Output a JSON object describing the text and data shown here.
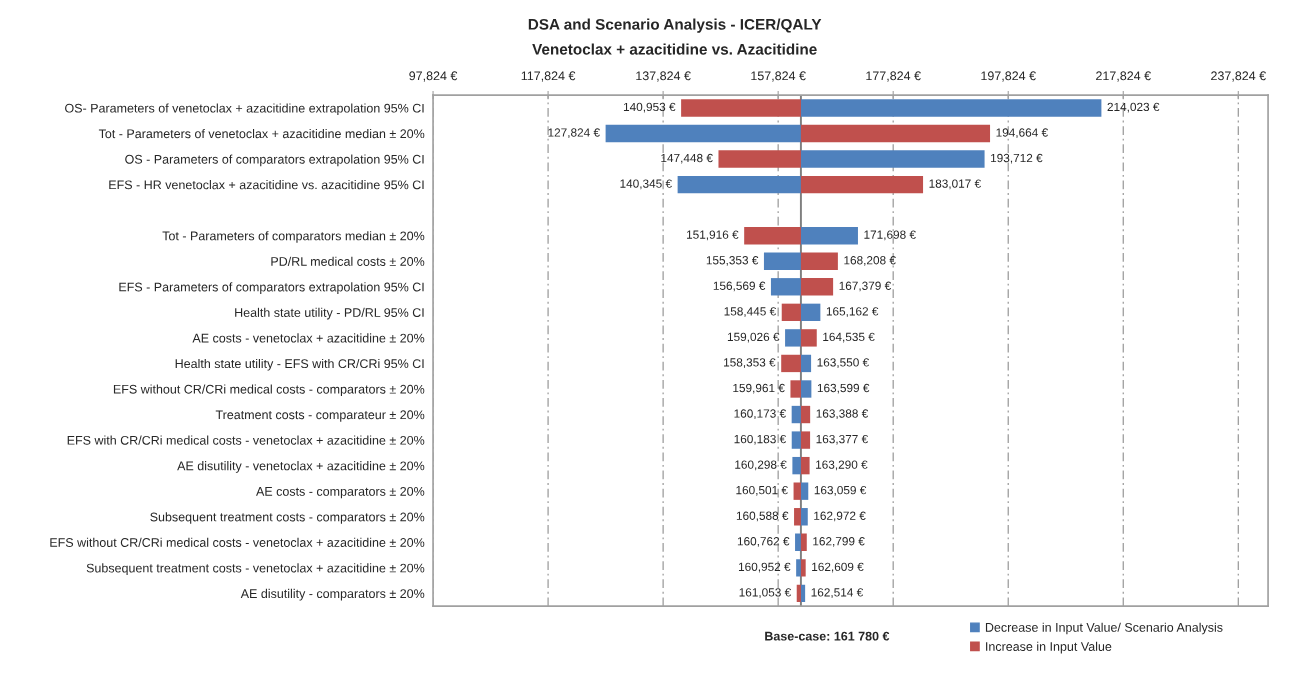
{
  "chart_data": {
    "type": "bar",
    "orientation": "horizontal",
    "title": "DSA and Scenario Analysis - ICER/QALY",
    "subtitle": "Venetoclax + azacitidine vs. Azacitidine",
    "categories": [
      "OS- Parameters of venetoclax + azacitidine extrapolation 95% CI",
      "Tot - Parameters of venetoclax + azacitidine median ± 20%",
      "OS - Parameters of comparators extrapolation 95% CI",
      "EFS - HR venetoclax + azacitidine vs. azacitidine 95% CI",
      null,
      "Tot - Parameters of comparators median ± 20%",
      "PD/RL medical costs ± 20%",
      "EFS - Parameters of comparators extrapolation 95% CI",
      "Health state utility - PD/RL 95% CI",
      "AE costs - venetoclax + azacitidine ± 20%",
      "Health state utility - EFS with CR/CRi 95% CI",
      "EFS without CR/CRi medical costs - comparators ± 20%",
      "Treatment costs - comparateur ± 20%",
      "EFS with CR/CRi medical costs - venetoclax + azacitidine ± 20%",
      "AE disutility - venetoclax + azacitidine ± 20%",
      "AE costs - comparators ± 20%",
      "Subsequent treatment costs - comparators ± 20%",
      "EFS without CR/CRi medical costs - venetoclax + azacitidine ± 20%",
      "Subsequent treatment costs - venetoclax + azacitidine ± 20%",
      "AE disutility - comparators ± 20%"
    ],
    "xlim": [
      97824,
      243000
    ],
    "xticks": [
      {
        "value": 97824,
        "label": "97,824 €"
      },
      {
        "value": 117824,
        "label": "117,824 €"
      },
      {
        "value": 137824,
        "label": "137,824 €"
      },
      {
        "value": 157824,
        "label": "157,824 €"
      },
      {
        "value": 177824,
        "label": "177,824 €"
      },
      {
        "value": 197824,
        "label": "197,824 €"
      },
      {
        "value": 217824,
        "label": "217,824 €"
      },
      {
        "value": 237824,
        "label": "237,824 €"
      }
    ],
    "grid": "x",
    "legend": "bottom right",
    "ref_lines": [
      {
        "axis": "x",
        "value": 161780,
        "color": "#7f7f7f"
      }
    ],
    "annotations": [
      "Base-case: 161 780 €"
    ],
    "series": [
      {
        "name": "Decrease in Input Value/ Scenario Analysis",
        "color": "#4f81bd",
        "base": [
          161780,
          161780,
          161780,
          161780,
          null,
          161780,
          161780,
          161780,
          161780,
          161780,
          161780,
          161780,
          161780,
          161780,
          161780,
          161780,
          161780,
          161780,
          161780,
          161780
        ],
        "values": [
          52243,
          -33956,
          31932,
          -21435,
          null,
          9918,
          -6427,
          -5211,
          3382,
          -2754,
          1770,
          1819,
          -1607,
          -1597,
          -1482,
          1279,
          1192,
          -1018,
          -828,
          734
        ],
        "value_labels": [
          "214,023 €",
          "127,824 €",
          "193,712 €",
          "140,345 €",
          null,
          "171,698 €",
          "155,353 €",
          "156,569 €",
          "165,162 €",
          "159,026 €",
          "163,550 €",
          "163,599 €",
          "160,173 €",
          "160,183 €",
          "160,298 €",
          "163,059 €",
          "162,972 €",
          "160,762 €",
          "160,952 €",
          "162,514 €"
        ]
      },
      {
        "name": "Increase in Input Value",
        "color": "#c0504d",
        "base": [
          161780,
          161780,
          161780,
          161780,
          null,
          161780,
          161780,
          161780,
          161780,
          161780,
          161780,
          161780,
          161780,
          161780,
          161780,
          161780,
          161780,
          161780,
          161780,
          161780
        ],
        "values": [
          -20827,
          32884,
          -14332,
          21237,
          null,
          -9864,
          6428,
          5599,
          -3335,
          2755,
          -3427,
          -1819,
          1608,
          1597,
          1510,
          -1279,
          -1192,
          1019,
          829,
          -727
        ],
        "value_labels": [
          "140,953 €",
          "194,664 €",
          "147,448 €",
          "183,017 €",
          null,
          "151,916 €",
          "168,208 €",
          "167,379 €",
          "158,445 €",
          "164,535 €",
          "158,353 €",
          "159,961 €",
          "163,388 €",
          "163,377 €",
          "163,290 €",
          "160,501 €",
          "160,588 €",
          "162,799 €",
          "162,609 €",
          "161,053 €"
        ]
      }
    ]
  }
}
